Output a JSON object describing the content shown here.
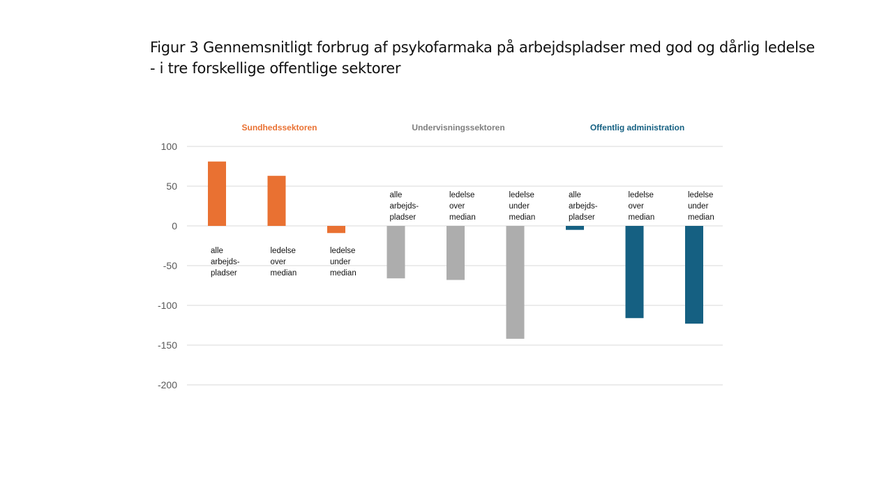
{
  "title": {
    "line1": "Figur 3 Gennemsnitligt forbrug af psykofarmaka på arbejdspladser med god og dårlig ledelse",
    "line2": "- i tre forskellige offentlige sektorer"
  },
  "chart_data": {
    "type": "bar",
    "ylim": [
      -200,
      100
    ],
    "yticks": [
      100,
      50,
      0,
      -50,
      -100,
      -150,
      -200
    ],
    "grid": true,
    "groups": [
      {
        "name": "Sundhedssektoren",
        "color": "#E97132",
        "bars": [
          {
            "label": [
              "alle",
              "arbejds-",
              "pladser"
            ],
            "value": 81
          },
          {
            "label": [
              "ledelse",
              "over",
              "median"
            ],
            "value": 63
          },
          {
            "label": [
              "ledelse",
              "under",
              "median"
            ],
            "value": -9
          }
        ]
      },
      {
        "name": "Undervisningssektoren",
        "color": "#ADADAD",
        "bars": [
          {
            "label": [
              "alle",
              "arbejds-",
              "pladser"
            ],
            "value": -66
          },
          {
            "label": [
              "ledelse",
              "over",
              "median"
            ],
            "value": -68
          },
          {
            "label": [
              "ledelse",
              "under",
              "median"
            ],
            "value": -142
          }
        ]
      },
      {
        "name": "Offentlig administration",
        "color": "#156082",
        "bars": [
          {
            "label": [
              "alle",
              "arbejds-",
              "pladser"
            ],
            "value": -5
          },
          {
            "label": [
              "ledelse",
              "over",
              "median"
            ],
            "value": -116
          },
          {
            "label": [
              "ledelse",
              "under",
              "median"
            ],
            "value": -123
          }
        ]
      }
    ]
  }
}
